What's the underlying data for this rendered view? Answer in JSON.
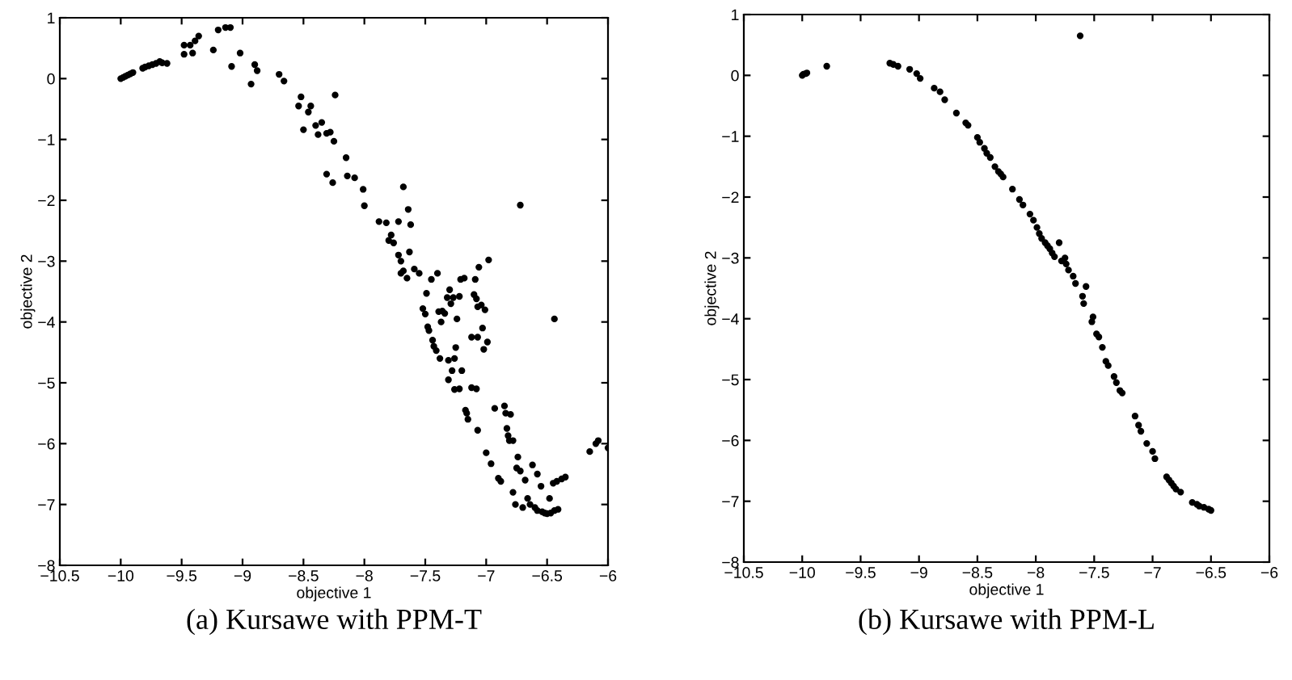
{
  "chart_data": [
    {
      "type": "scatter",
      "xlabel": "objective 1",
      "ylabel": "objective 2",
      "annotations": [
        "(a) Kursawe with PPM-T"
      ],
      "color": "#000000",
      "marker": "circle",
      "grid": false,
      "xlim": [
        -10.5,
        -6
      ],
      "ylim": [
        -8,
        1
      ],
      "xticks": [
        -10.5,
        -10,
        -9.5,
        -9,
        -8.5,
        -8,
        -7.5,
        -7,
        -6.5,
        -6
      ],
      "yticks": [
        -8,
        -7,
        -6,
        -5,
        -4,
        -3,
        -2,
        -1,
        0,
        1
      ],
      "x": [
        -10.0,
        -9.98,
        -9.96,
        -9.94,
        -9.92,
        -9.9,
        -9.82,
        -9.8,
        -9.77,
        -9.74,
        -9.71,
        -9.68,
        -9.66,
        -9.62,
        -9.48,
        -9.48,
        -9.43,
        -9.41,
        -9.39,
        -9.36,
        -9.24,
        -9.2,
        -9.14,
        -9.1,
        -9.09,
        -9.02,
        -8.93,
        -8.9,
        -8.88,
        -8.7,
        -8.66,
        -8.54,
        -8.52,
        -8.5,
        -8.46,
        -8.44,
        -8.4,
        -8.38,
        -8.35,
        -8.31,
        -8.31,
        -8.28,
        -8.26,
        -8.25,
        -8.24,
        -8.15,
        -8.14,
        -8.08,
        -8.01,
        -8.0,
        -7.88,
        -7.82,
        -7.8,
        -7.78,
        -7.76,
        -7.72,
        -7.72,
        -7.7,
        -7.7,
        -7.68,
        -7.68,
        -7.65,
        -7.64,
        -7.63,
        -7.62,
        -7.59,
        -7.55,
        -7.52,
        -7.5,
        -7.49,
        -7.48,
        -7.47,
        -7.45,
        -7.44,
        -7.43,
        -7.41,
        -7.4,
        -7.39,
        -7.38,
        -7.37,
        -7.36,
        -7.34,
        -7.32,
        -7.31,
        -7.31,
        -7.3,
        -7.29,
        -7.28,
        -7.27,
        -7.26,
        -7.26,
        -7.25,
        -7.24,
        -7.22,
        -7.22,
        -7.21,
        -7.2,
        -7.18,
        -7.17,
        -7.16,
        -7.15,
        -7.12,
        -7.12,
        -7.1,
        -7.09,
        -7.08,
        -7.08,
        -7.07,
        -7.07,
        -7.07,
        -7.06,
        -7.04,
        -7.03,
        -7.02,
        -7.01,
        -7.0,
        -6.99,
        -6.98,
        -6.96,
        -6.93,
        -6.9,
        -6.88,
        -6.85,
        -6.84,
        -6.83,
        -6.82,
        -6.81,
        -6.8,
        -6.78,
        -6.78,
        -6.76,
        -6.75,
        -6.74,
        -6.72,
        -6.72,
        -6.7,
        -6.68,
        -6.66,
        -6.64,
        -6.62,
        -6.6,
        -6.58,
        -6.58,
        -6.55,
        -6.54,
        -6.52,
        -6.5,
        -6.48,
        -6.47,
        -6.45,
        -6.44,
        -6.44,
        -6.42,
        -6.41,
        -6.38,
        -6.35,
        -6.15,
        -6.1,
        -6.08,
        -6.0
      ],
      "values": [
        0.0,
        0.02,
        0.04,
        0.06,
        0.08,
        0.1,
        0.17,
        0.19,
        0.21,
        0.23,
        0.25,
        0.28,
        0.26,
        0.25,
        0.55,
        0.4,
        0.55,
        0.42,
        0.62,
        0.7,
        0.47,
        0.8,
        0.84,
        0.84,
        0.2,
        0.42,
        -0.09,
        0.23,
        0.13,
        0.07,
        -0.04,
        -0.45,
        -0.3,
        -0.84,
        -0.55,
        -0.45,
        -0.77,
        -0.92,
        -0.72,
        -0.9,
        -1.57,
        -0.88,
        -1.71,
        -1.03,
        -0.27,
        -1.3,
        -1.6,
        -1.63,
        -1.82,
        -2.09,
        -2.35,
        -2.37,
        -2.66,
        -2.57,
        -2.7,
        -2.35,
        -2.9,
        -3.0,
        -3.2,
        -1.78,
        -3.16,
        -3.28,
        -2.15,
        -2.85,
        -2.4,
        -3.13,
        -3.2,
        -3.78,
        -3.87,
        -3.53,
        -4.08,
        -4.14,
        -3.3,
        -4.3,
        -4.4,
        -4.47,
        -3.2,
        -3.83,
        -4.6,
        -4.0,
        -3.82,
        -3.86,
        -3.6,
        -4.63,
        -4.95,
        -3.47,
        -3.7,
        -4.8,
        -3.6,
        -4.6,
        -5.11,
        -4.42,
        -3.95,
        -3.58,
        -5.1,
        -3.3,
        -4.8,
        -3.28,
        -5.45,
        -5.5,
        -5.6,
        -4.25,
        -5.08,
        -3.55,
        -3.3,
        -3.62,
        -5.1,
        -3.75,
        -4.25,
        -5.78,
        -3.1,
        -3.72,
        -4.1,
        -4.45,
        -3.8,
        -6.15,
        -4.33,
        -2.98,
        -6.33,
        -5.42,
        -6.57,
        -6.62,
        -5.38,
        -5.5,
        -5.75,
        -5.87,
        -5.95,
        -5.52,
        -6.8,
        -5.95,
        -7.0,
        -6.4,
        -6.22,
        -2.08,
        -6.45,
        -7.05,
        -6.6,
        -6.9,
        -7.0,
        -6.35,
        -7.05,
        -6.5,
        -7.1,
        -6.7,
        -7.12,
        -7.14,
        -7.15,
        -6.9,
        -7.14,
        -6.65,
        -3.95,
        -7.1,
        -6.62,
        -7.08,
        -6.58,
        -6.55,
        -6.13,
        -6.0,
        -5.95,
        -6.07
      ]
    },
    {
      "type": "scatter",
      "xlabel": "objective 1",
      "ylabel": "objective 2",
      "annotations": [
        "(b) Kursawe with PPM-L"
      ],
      "color": "#000000",
      "marker": "circle",
      "grid": false,
      "xlim": [
        -10.5,
        -6
      ],
      "ylim": [
        -8,
        1
      ],
      "xticks": [
        -10.5,
        -10,
        -9.5,
        -9,
        -8.5,
        -8,
        -7.5,
        -7,
        -6.5,
        -6
      ],
      "yticks": [
        -8,
        -7,
        -6,
        -5,
        -4,
        -3,
        -2,
        -1,
        0,
        1
      ],
      "x": [
        -10.0,
        -9.99,
        -9.97,
        -9.96,
        -9.79,
        -9.25,
        -9.22,
        -9.18,
        -9.08,
        -9.02,
        -8.99,
        -8.87,
        -8.82,
        -8.78,
        -8.68,
        -8.6,
        -8.58,
        -8.5,
        -8.48,
        -8.44,
        -8.42,
        -8.39,
        -8.35,
        -8.32,
        -8.3,
        -8.28,
        -8.2,
        -8.14,
        -8.11,
        -8.05,
        -8.02,
        -7.99,
        -7.97,
        -7.95,
        -7.92,
        -7.9,
        -7.88,
        -7.86,
        -7.84,
        -7.8,
        -7.78,
        -7.75,
        -7.74,
        -7.72,
        -7.68,
        -7.66,
        -7.62,
        -7.6,
        -7.59,
        -7.57,
        -7.52,
        -7.51,
        -7.48,
        -7.46,
        -7.43,
        -7.4,
        -7.38,
        -7.33,
        -7.31,
        -7.28,
        -7.26,
        -7.15,
        -7.12,
        -7.1,
        -7.05,
        -7.0,
        -6.98,
        -6.88,
        -6.86,
        -6.84,
        -6.82,
        -6.8,
        -6.76,
        -6.66,
        -6.62,
        -6.6,
        -6.56,
        -6.52,
        -6.5
      ],
      "values": [
        0.0,
        0.02,
        0.03,
        0.04,
        0.15,
        0.2,
        0.18,
        0.15,
        0.1,
        0.03,
        -0.05,
        -0.21,
        -0.27,
        -0.4,
        -0.62,
        -0.78,
        -0.82,
        -1.02,
        -1.1,
        -1.2,
        -1.28,
        -1.35,
        -1.5,
        -1.58,
        -1.62,
        -1.67,
        -1.87,
        -2.04,
        -2.13,
        -2.28,
        -2.38,
        -2.5,
        -2.6,
        -2.68,
        -2.75,
        -2.8,
        -2.85,
        -2.92,
        -2.98,
        -2.75,
        -3.05,
        -3.0,
        -3.1,
        -3.2,
        -3.3,
        -3.42,
        0.65,
        -3.63,
        -3.75,
        -3.47,
        -4.05,
        -3.97,
        -4.25,
        -4.3,
        -4.47,
        -4.7,
        -4.77,
        -4.95,
        -5.05,
        -5.18,
        -5.22,
        -5.6,
        -5.75,
        -5.85,
        -6.05,
        -6.18,
        -6.3,
        -6.6,
        -6.65,
        -6.7,
        -6.75,
        -6.8,
        -6.85,
        -7.02,
        -7.05,
        -7.08,
        -7.1,
        -7.13,
        -7.15
      ]
    }
  ]
}
